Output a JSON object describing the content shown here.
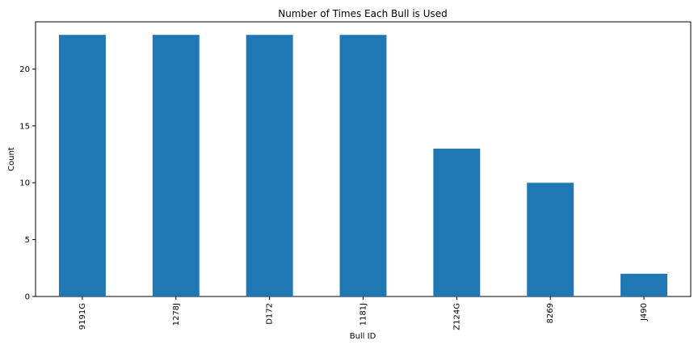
{
  "chart_data": {
    "type": "bar",
    "title": "Number of Times Each Bull is Used",
    "xlabel": "Bull ID",
    "ylabel": "Count",
    "categories": [
      "9191G",
      "1278J",
      "D172",
      "1181J",
      "Z124G",
      "8269",
      "J490"
    ],
    "values": [
      23,
      23,
      23,
      23,
      13,
      10,
      2
    ],
    "ylim": [
      0,
      24.15
    ],
    "yticks": [
      0,
      5,
      10,
      15,
      20
    ],
    "bar_color": "#1f77b4",
    "grid": false,
    "legend": "none"
  }
}
